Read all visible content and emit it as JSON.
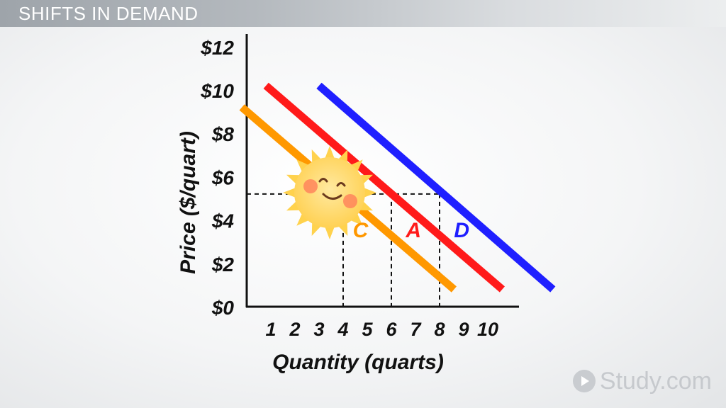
{
  "header": {
    "title": "SHIFTS IN DEMAND"
  },
  "branding": {
    "logo_text": "Study.com",
    "logo_icon": "play-circle-icon"
  },
  "chart_data": {
    "type": "line",
    "xlabel": "Quantity (quarts)",
    "ylabel": "Price ($/quart)",
    "x_ticks": [
      "1",
      "2",
      "3",
      "4",
      "5",
      "6",
      "7",
      "8",
      "9",
      "10"
    ],
    "y_ticks": [
      "$0",
      "$2",
      "$4",
      "$6",
      "$8",
      "$10",
      "$12"
    ],
    "xlim": [
      0,
      11.5
    ],
    "ylim": [
      0,
      12.5
    ],
    "series": [
      {
        "name": "C",
        "color": "#ff9800",
        "points": [
          [
            -0.2,
            9.2
          ],
          [
            8.6,
            0.8
          ]
        ]
      },
      {
        "name": "A",
        "color": "#ff1a1a",
        "points": [
          [
            0.8,
            10.2
          ],
          [
            10.6,
            0.8
          ]
        ]
      },
      {
        "name": "D",
        "color": "#1f1fff",
        "points": [
          [
            3.0,
            10.2
          ],
          [
            12.7,
            0.8
          ]
        ]
      }
    ],
    "price_level": 5.2,
    "reference_quantities": [
      4,
      6,
      8
    ],
    "decoration": "smiling-sun-icon"
  }
}
